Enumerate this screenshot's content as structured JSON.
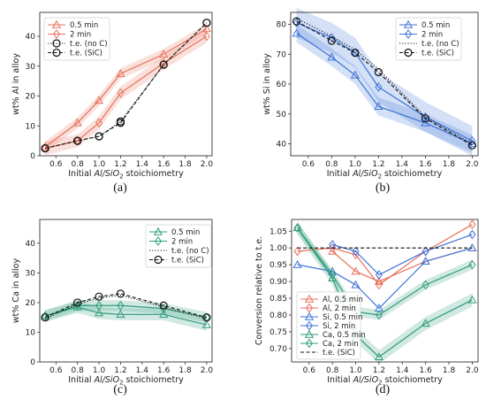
{
  "palette": {
    "al": "#e8705a",
    "si": "#3d72d6",
    "ca": "#2f9b7a",
    "te": "#111111",
    "frame": "#333333"
  },
  "chart_data": [
    {
      "type": "line",
      "caption": "(a)",
      "xlabel_pre": "Initial ",
      "xlabel_math": "Al/SiO",
      "xlabel_sub": "2",
      "xlabel_post": " stoichiometry",
      "ylabel": "wt% Al in alloy",
      "xlim": [
        0.45,
        2.05
      ],
      "ylim": [
        0,
        48
      ],
      "xticks": [
        "0.6",
        "0.8",
        "1.0",
        "1.2",
        "1.4",
        "1.6",
        "1.8",
        "2.0"
      ],
      "yticks": [
        "0",
        "10",
        "20",
        "30",
        "40"
      ],
      "legend": "top-left",
      "series": [
        {
          "name": "0.5 min",
          "color_key": "al",
          "marker": "triangle",
          "dash": "solid",
          "x": [
            0.5,
            0.8,
            1.0,
            1.2,
            1.6,
            2.0
          ],
          "y": [
            3,
            11,
            18.5,
            27.5,
            34,
            42.5
          ],
          "band": 1.8
        },
        {
          "name": "2 min",
          "color_key": "al",
          "marker": "diamond",
          "dash": "solid",
          "x": [
            0.5,
            0.8,
            1.0,
            1.2,
            1.6,
            2.0
          ],
          "y": [
            2.5,
            5,
            11,
            21,
            31,
            40
          ],
          "band": 2.2
        },
        {
          "name": "t.e. (no C)",
          "color_key": "te",
          "marker": "circle",
          "dash": "dot",
          "x": [
            0.5,
            0.8,
            1.0,
            1.2,
            1.6,
            2.0
          ],
          "y": [
            2.5,
            5,
            6.5,
            11.5,
            30.5,
            44.5
          ]
        },
        {
          "name": "t.e. (SiC)",
          "color_key": "te",
          "marker": "circle",
          "dash": "dash",
          "x": [
            0.5,
            0.8,
            1.0,
            1.2,
            1.6,
            2.0
          ],
          "y": [
            2.5,
            5,
            6.5,
            11,
            30.5,
            44.5
          ]
        }
      ]
    },
    {
      "type": "line",
      "caption": "(b)",
      "xlabel_pre": "Initial ",
      "xlabel_math": "Al/SiO",
      "xlabel_sub": "2",
      "xlabel_post": " stoichiometry",
      "ylabel": "wt% Si in alloy",
      "xlim": [
        0.45,
        2.05
      ],
      "ylim": [
        36,
        84
      ],
      "xticks": [
        "0.6",
        "0.8",
        "1.0",
        "1.2",
        "1.4",
        "1.6",
        "1.8",
        "2.0"
      ],
      "yticks": [
        "40",
        "50",
        "60",
        "70",
        "80"
      ],
      "legend": "top-right",
      "series": [
        {
          "name": "0.5 min",
          "color_key": "si",
          "marker": "triangle",
          "dash": "solid",
          "x": [
            0.5,
            0.8,
            1.0,
            1.2,
            1.6,
            2.0
          ],
          "y": [
            77,
            69,
            63,
            52.5,
            47,
            40
          ],
          "band": 3
        },
        {
          "name": "2 min",
          "color_key": "si",
          "marker": "diamond",
          "dash": "solid",
          "x": [
            0.5,
            0.8,
            1.0,
            1.2,
            1.6,
            2.0
          ],
          "y": [
            80.5,
            75.5,
            70.5,
            59,
            49,
            41
          ],
          "band": 5
        },
        {
          "name": "t.e. (no C)",
          "color_key": "te",
          "marker": "none",
          "dash": "dot",
          "x": [
            0.5,
            0.8,
            1.0,
            1.2,
            1.6,
            2.0
          ],
          "y": [
            82,
            76,
            71.5,
            65,
            49,
            40
          ]
        },
        {
          "name": "t.e. (SiC)",
          "color_key": "te",
          "marker": "circle",
          "dash": "dash",
          "x": [
            0.5,
            0.8,
            1.0,
            1.2,
            1.6,
            2.0
          ],
          "y": [
            81,
            74.5,
            70.5,
            64,
            48.5,
            39.5
          ]
        }
      ]
    },
    {
      "type": "line",
      "caption": "(c)",
      "xlabel_pre": "Initial ",
      "xlabel_math": "Al/SiO",
      "xlabel_sub": "2",
      "xlabel_post": " stoichiometry",
      "ylabel": "wt% Ca in alloy",
      "xlim": [
        0.45,
        2.05
      ],
      "ylim": [
        0,
        48
      ],
      "xticks": [
        "0.6",
        "0.8",
        "1.0",
        "1.2",
        "1.4",
        "1.6",
        "1.8",
        "2.0"
      ],
      "yticks": [
        "0",
        "10",
        "20",
        "30",
        "40"
      ],
      "legend": "top-right",
      "series": [
        {
          "name": "0.5 min",
          "color_key": "ca",
          "marker": "triangle",
          "dash": "solid",
          "x": [
            0.5,
            0.8,
            1.0,
            1.2,
            1.6,
            2.0
          ],
          "y": [
            15.5,
            18.5,
            16.5,
            16,
            16,
            12.5
          ],
          "band": 2
        },
        {
          "name": "2 min",
          "color_key": "ca",
          "marker": "diamond",
          "dash": "solid",
          "x": [
            0.5,
            0.8,
            1.0,
            1.2,
            1.6,
            2.0
          ],
          "y": [
            15.5,
            19,
            19,
            19,
            18,
            15
          ],
          "band": 1.8
        },
        {
          "name": "t.e. (no C)",
          "color_key": "te",
          "marker": "none",
          "dash": "dot",
          "x": [
            0.5,
            0.8,
            1.0,
            1.2,
            1.6,
            2.0
          ],
          "y": [
            14.5,
            19.5,
            21.5,
            22.5,
            18.5,
            14.5
          ]
        },
        {
          "name": "t.e. (SiC)",
          "color_key": "te",
          "marker": "circle",
          "dash": "dash",
          "x": [
            0.5,
            0.8,
            1.0,
            1.2,
            1.6,
            2.0
          ],
          "y": [
            15,
            20,
            22,
            23,
            19,
            15
          ]
        }
      ]
    },
    {
      "type": "line",
      "caption": "(d)",
      "xlabel_pre": "Initial ",
      "xlabel_math": "Al/SiO",
      "xlabel_sub": "2",
      "xlabel_post": " stoichiometry",
      "ylabel": "Conversion relative to t.e.",
      "xlim": [
        0.45,
        2.05
      ],
      "ylim": [
        0.66,
        1.085
      ],
      "xticks": [
        "0.6",
        "0.8",
        "1.0",
        "1.2",
        "1.4",
        "1.6",
        "1.8",
        "2.0"
      ],
      "yticks": [
        "0.70",
        "0.75",
        "0.80",
        "0.85",
        "0.90",
        "0.95",
        "1.00",
        "1.05"
      ],
      "legend": "bottom-left",
      "series": [
        {
          "name": "Al, 0.5 min",
          "color_key": "al",
          "marker": "triangle",
          "dash": "solid",
          "x": [
            0.8,
            1.0,
            1.2,
            1.6,
            2.0
          ],
          "y": [
            0.99,
            0.93,
            0.9,
            0.96,
            1.0
          ]
        },
        {
          "name": "Al, 2 min",
          "color_key": "al",
          "marker": "diamond",
          "dash": "solid",
          "x": [
            0.5,
            0.8,
            1.0,
            1.2,
            1.6,
            2.0
          ],
          "y": [
            0.99,
            1.0,
            0.98,
            0.89,
            0.99,
            1.07
          ]
        },
        {
          "name": "Si, 0.5 min",
          "color_key": "si",
          "marker": "triangle",
          "dash": "solid",
          "x": [
            0.5,
            0.8,
            1.0,
            1.2,
            1.6,
            2.0
          ],
          "y": [
            0.95,
            0.93,
            0.89,
            0.82,
            0.96,
            1.0
          ]
        },
        {
          "name": "Si, 2 min",
          "color_key": "si",
          "marker": "diamond",
          "dash": "solid",
          "x": [
            0.8,
            1.0,
            1.2,
            1.6,
            2.0
          ],
          "y": [
            1.01,
            0.99,
            0.92,
            0.99,
            1.04
          ]
        },
        {
          "name": "Ca, 0.5 min",
          "color_key": "ca",
          "marker": "triangle",
          "dash": "solid",
          "x": [
            0.5,
            0.8,
            1.0,
            1.2,
            1.6,
            2.0
          ],
          "y": [
            1.06,
            0.91,
            0.74,
            0.675,
            0.775,
            0.845
          ],
          "band": 0.02
        },
        {
          "name": "Ca, 2 min",
          "color_key": "ca",
          "marker": "diamond",
          "dash": "solid",
          "x": [
            0.5,
            0.8,
            1.0,
            1.2,
            1.6,
            2.0
          ],
          "y": [
            1.06,
            0.92,
            0.81,
            0.8,
            0.89,
            0.95
          ],
          "band": 0.015
        },
        {
          "name": "t.e. (SiC)",
          "color_key": "te",
          "marker": "none",
          "dash": "dash",
          "x": [
            0.5,
            2.0
          ],
          "y": [
            1.0,
            1.0
          ]
        }
      ]
    }
  ]
}
